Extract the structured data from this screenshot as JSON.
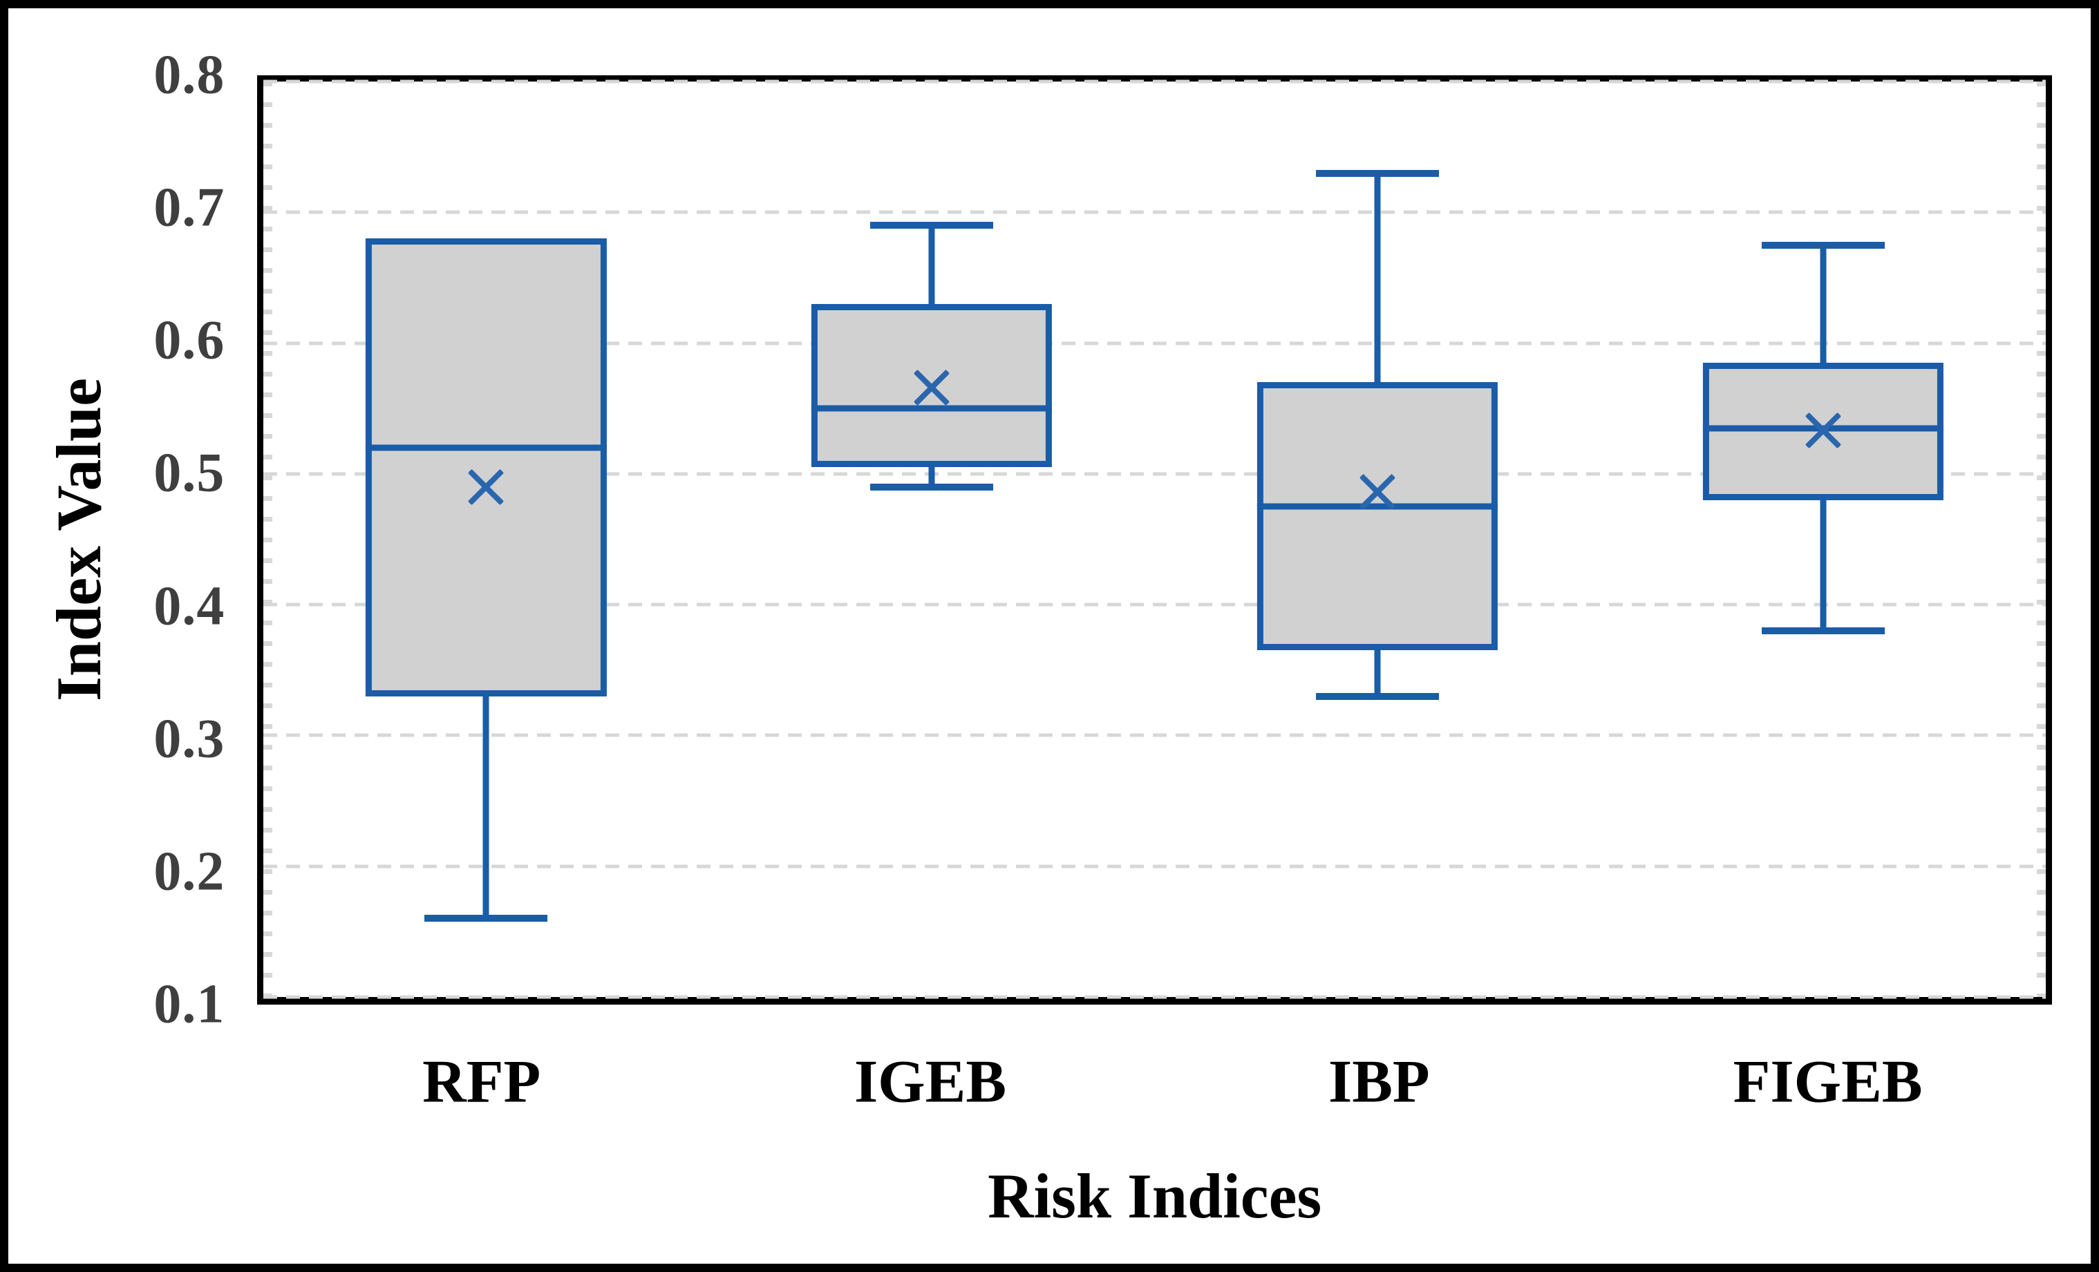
{
  "figure": {
    "background": "#ffffff",
    "outer_border_color": "#000000"
  },
  "chart_data": {
    "type": "box",
    "title": "",
    "xlabel": "Risk Indices",
    "ylabel": "Index Value",
    "ylim": [
      0.1,
      0.8
    ],
    "y_ticks": [
      "0.8",
      "0.7",
      "0.6",
      "0.5",
      "0.4",
      "0.3",
      "0.2",
      "0.1"
    ],
    "grid": "horizontal dashed gridlines at every 0.1, light gray",
    "legend": "none",
    "categories": [
      "RFP",
      "IGEB",
      "IBP",
      "FIGEB"
    ],
    "boxes": [
      {
        "label": "RFP",
        "whisker_low": 0.16,
        "q1": 0.33,
        "median": 0.52,
        "q3": 0.68,
        "whisker_high": 0.68,
        "mean": 0.49
      },
      {
        "label": "IGEB",
        "whisker_low": 0.49,
        "q1": 0.505,
        "median": 0.55,
        "q3": 0.63,
        "whisker_high": 0.69,
        "mean": 0.566
      },
      {
        "label": "IBP",
        "whisker_low": 0.33,
        "q1": 0.365,
        "median": 0.475,
        "q3": 0.57,
        "whisker_high": 0.73,
        "mean": 0.486
      },
      {
        "label": "FIGEB",
        "whisker_low": 0.38,
        "q1": 0.48,
        "median": 0.535,
        "q3": 0.585,
        "whisker_high": 0.675,
        "mean": 0.533
      }
    ],
    "colors": {
      "box_border": "#1a5ca8",
      "box_fill": "#d1d1d1",
      "median_line": "#1a5ca8",
      "mean_marker": "#2a66ae",
      "whisker": "#1a5ca8",
      "gridline": "#d7d7d7",
      "axis_frame": "#000000",
      "tick_label": "#3f3f3f",
      "axis_title": "#000000"
    },
    "marker_style": "x for mean"
  }
}
